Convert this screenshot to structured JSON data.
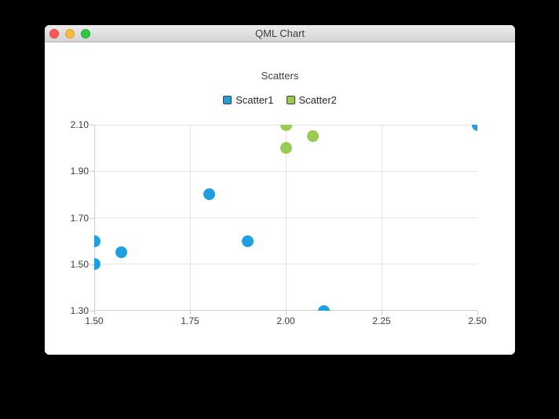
{
  "window": {
    "title": "QML Chart",
    "traffic_lights": [
      {
        "name": "close-button",
        "color": "#fc5b57",
        "border": "#e1433e"
      },
      {
        "name": "minimize-button",
        "color": "#fdbd40",
        "border": "#e0a02a"
      },
      {
        "name": "zoom-button",
        "color": "#33c748",
        "border": "#1eae2e"
      }
    ]
  },
  "chart_data": {
    "type": "scatter",
    "title": "Scatters",
    "legend_position": "top",
    "grid": true,
    "xlim": [
      1.5,
      2.5
    ],
    "ylim": [
      1.3,
      2.1
    ],
    "x_ticks": [
      {
        "value": 1.5,
        "label": "1.50"
      },
      {
        "value": 1.75,
        "label": "1.75"
      },
      {
        "value": 2.0,
        "label": "2.00"
      },
      {
        "value": 2.25,
        "label": "2.25"
      },
      {
        "value": 2.5,
        "label": "2.50"
      }
    ],
    "y_ticks": [
      {
        "value": 1.3,
        "label": "1.30"
      },
      {
        "value": 1.5,
        "label": "1.50"
      },
      {
        "value": 1.7,
        "label": "1.70"
      },
      {
        "value": 1.9,
        "label": "1.90"
      },
      {
        "value": 2.1,
        "label": "2.10"
      }
    ],
    "marker_size": 15,
    "series": [
      {
        "name": "Scatter1",
        "color": "#209fdf",
        "points": [
          {
            "x": 1.5,
            "y": 1.5
          },
          {
            "x": 1.5,
            "y": 1.6
          },
          {
            "x": 1.57,
            "y": 1.55
          },
          {
            "x": 1.8,
            "y": 1.8
          },
          {
            "x": 1.9,
            "y": 1.6
          },
          {
            "x": 2.1,
            "y": 1.3
          },
          {
            "x": 2.5,
            "y": 2.1
          }
        ]
      },
      {
        "name": "Scatter2",
        "color": "#99ca53",
        "points": [
          {
            "x": 2.0,
            "y": 2.0
          },
          {
            "x": 2.0,
            "y": 2.1
          },
          {
            "x": 2.07,
            "y": 2.05
          }
        ]
      }
    ],
    "colors": {
      "grid": "#e4e4e4",
      "axis": "#cfcfcf",
      "label_text": "#3c3c3c"
    }
  }
}
